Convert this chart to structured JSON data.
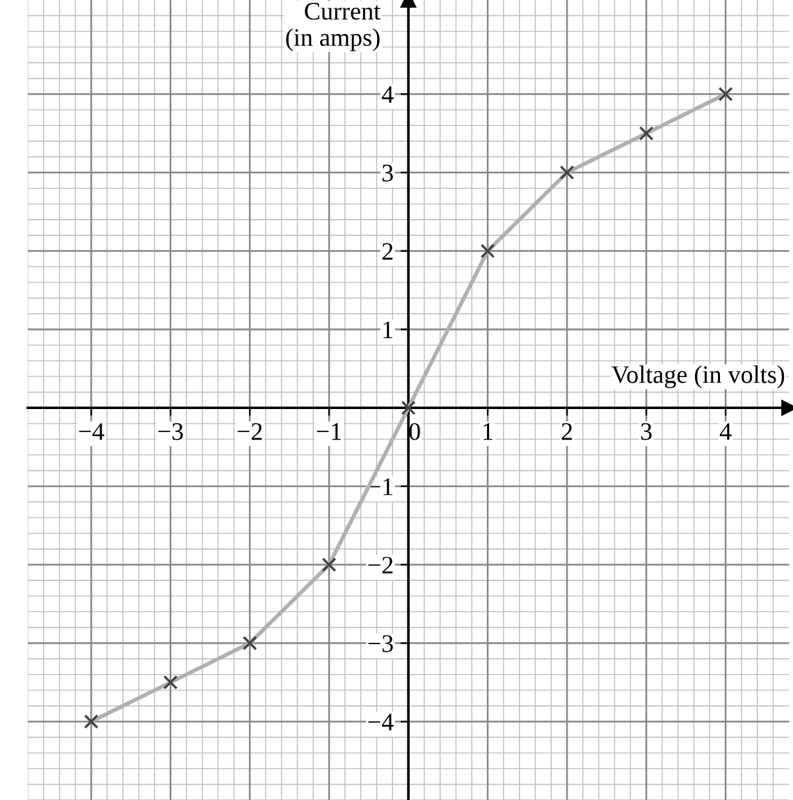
{
  "chart_data": {
    "type": "line",
    "xlabel": "Voltage (in volts)",
    "ylabel": "Current\n(in amps)",
    "x": [
      -4,
      -3,
      -2,
      -1,
      0,
      1,
      2,
      3,
      4
    ],
    "series": [
      {
        "color": "#b0b0b0",
        "values": [
          -4,
          -3.5,
          -3,
          -2,
          0,
          2,
          3,
          3.5,
          4
        ],
        "marker": "none"
      },
      {
        "type": "scatter",
        "color": "#444444",
        "values": [
          -4,
          -3.5,
          -3,
          -2,
          0,
          2,
          3,
          3.5,
          4
        ],
        "marker": "cross"
      }
    ],
    "xlim": [
      -4.8,
      4.8
    ],
    "ylim": [
      -5,
      5.2
    ],
    "xticks": [
      -4,
      -3,
      -2,
      -1,
      0,
      1,
      2,
      3,
      4
    ],
    "yticks": [
      -4,
      -3,
      -2,
      -1,
      1,
      2,
      3,
      4
    ],
    "grid": true,
    "legend": false
  }
}
